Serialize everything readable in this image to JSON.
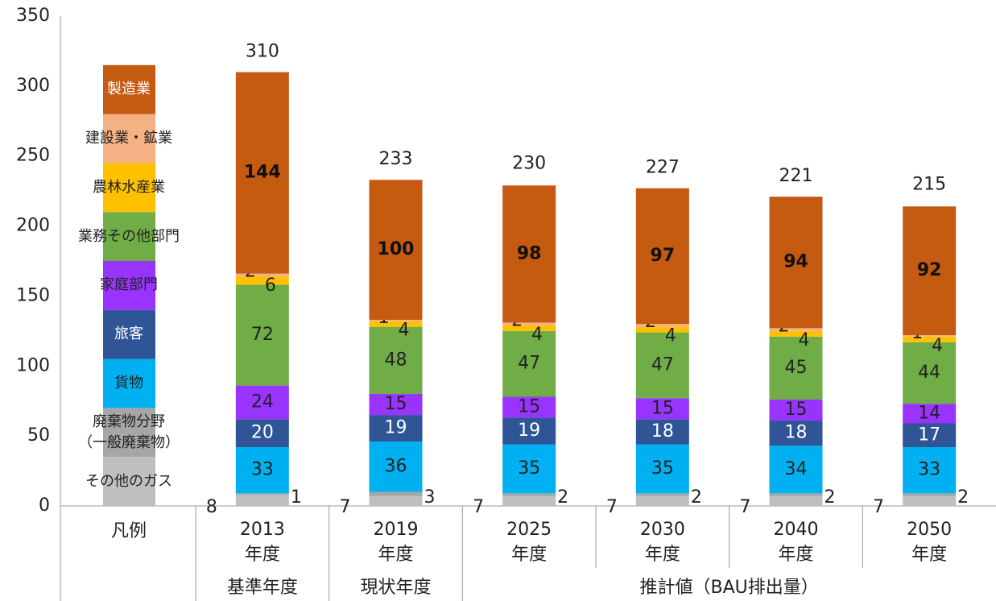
{
  "chart_data": {
    "type": "bar",
    "stacked": true,
    "legend_title": "凡例",
    "categories": [
      "2013",
      "2019",
      "2025",
      "2030",
      "2040",
      "2050"
    ],
    "category_suffix": "年度",
    "groups": [
      {
        "label": "基準年度",
        "count": 1
      },
      {
        "label": "現状年度",
        "count": 1
      },
      {
        "label": "推計値（BAU排出量）",
        "count": 4
      }
    ],
    "ylim": [
      0,
      350
    ],
    "yticks": [
      0,
      50,
      100,
      150,
      200,
      250,
      300,
      350
    ],
    "totals": [
      310,
      233,
      230,
      227,
      221,
      215
    ],
    "series": [
      {
        "name": "その他のガス",
        "color": "#bfbfbf",
        "values": [
          8,
          7,
          7,
          7,
          7,
          7
        ]
      },
      {
        "name": "廃棄物分野\n（一般廃棄物）",
        "color": "#a6a6a6",
        "values": [
          1,
          3,
          2,
          2,
          2,
          2
        ]
      },
      {
        "name": "貨物",
        "color": "#00b0f0",
        "values": [
          33,
          36,
          35,
          35,
          34,
          33
        ]
      },
      {
        "name": "旅客",
        "color": "#2f5597",
        "values": [
          20,
          19,
          19,
          18,
          18,
          17
        ]
      },
      {
        "name": "家庭部門",
        "color": "#9933ff",
        "values": [
          24,
          15,
          15,
          15,
          15,
          14
        ]
      },
      {
        "name": "業務その他部門",
        "color": "#70ad47",
        "values": [
          72,
          48,
          47,
          47,
          45,
          44
        ]
      },
      {
        "name": "農林水産業",
        "color": "#ffc000",
        "values": [
          6,
          4,
          4,
          4,
          4,
          4
        ]
      },
      {
        "name": "建設業・鉱業",
        "color": "#f4b183",
        "values": [
          2,
          1,
          2,
          2,
          2,
          1
        ]
      },
      {
        "name": "製造業",
        "color": "#c55a11",
        "values": [
          144,
          100,
          98,
          97,
          94,
          92
        ]
      }
    ]
  }
}
